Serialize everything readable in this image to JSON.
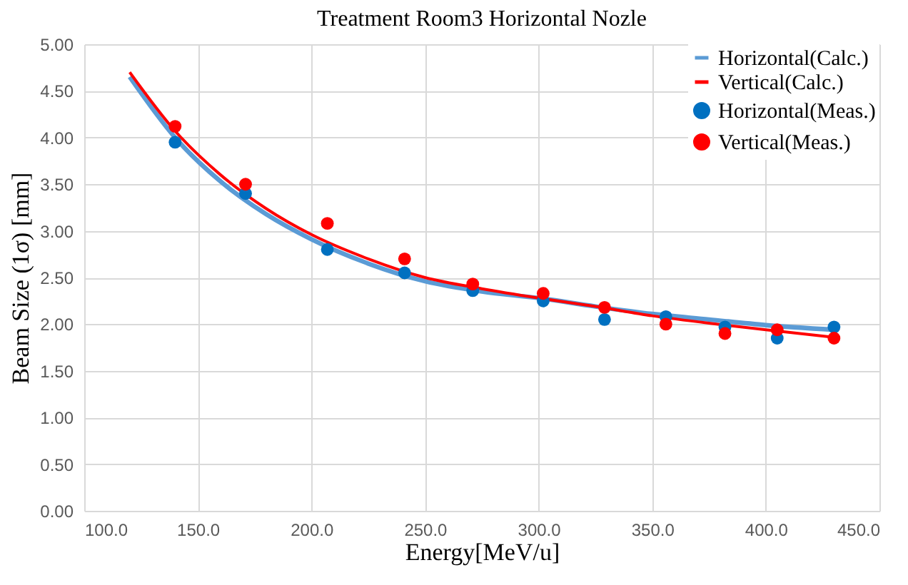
{
  "chart_data": {
    "type": "line",
    "title": "Treatment Room3  Horizontal Nozle",
    "xlabel": "Energy[MeV/u]",
    "ylabel": "Beam Size (1σ)  [mm]",
    "xlim": [
      100,
      450
    ],
    "xticks": [
      {
        "value": 100,
        "label": "100.0"
      },
      {
        "value": 150,
        "label": "150.0"
      },
      {
        "value": 200,
        "label": "200.0"
      },
      {
        "value": 250,
        "label": "250.0"
      },
      {
        "value": 300,
        "label": "300.0"
      },
      {
        "value": 350,
        "label": "350.0"
      },
      {
        "value": 400,
        "label": "400.0"
      },
      {
        "value": 450,
        "label": "450.0"
      }
    ],
    "ylim": [
      0,
      5
    ],
    "yticks": [
      {
        "value": 0,
        "label": "0.00"
      },
      {
        "value": 0.5,
        "label": "0.50"
      },
      {
        "value": 1,
        "label": "1.00"
      },
      {
        "value": 1.5,
        "label": "1.50"
      },
      {
        "value": 2,
        "label": "2.00"
      },
      {
        "value": 2.5,
        "label": "2.50"
      },
      {
        "value": 3,
        "label": "3.00"
      },
      {
        "value": 3.5,
        "label": "3.50"
      },
      {
        "value": 4,
        "label": "4.00"
      },
      {
        "value": 4.5,
        "label": "4.50"
      },
      {
        "value": 5,
        "label": "5.00"
      }
    ],
    "grid": true,
    "legend": "top right",
    "series": [
      {
        "name": "Horizontal(Calc.)",
        "marker": "none",
        "line_style": "solid",
        "color": "#5b9bd5",
        "x": [
          120,
          140,
          160,
          180,
          200,
          225,
          250,
          275,
          300,
          325,
          350,
          375,
          400,
          430
        ],
        "values": [
          4.65,
          4.0,
          3.53,
          3.18,
          2.91,
          2.65,
          2.46,
          2.35,
          2.28,
          2.19,
          2.11,
          2.05,
          1.99,
          1.94
        ]
      },
      {
        "name": "Vertical(Calc.)",
        "marker": "none",
        "line_style": "solid",
        "color": "#ff0000",
        "x": [
          120,
          140,
          160,
          180,
          200,
          225,
          250,
          275,
          300,
          325,
          350,
          375,
          400,
          430
        ],
        "values": [
          4.7,
          4.07,
          3.6,
          3.24,
          2.96,
          2.7,
          2.5,
          2.38,
          2.28,
          2.19,
          2.09,
          2.01,
          1.94,
          1.86
        ]
      },
      {
        "name": "Horizontal(Meas.)",
        "type": "scatter",
        "marker": "circle",
        "color": "#0070c0",
        "x": [
          140,
          171,
          207,
          241,
          271,
          302,
          329,
          356,
          382,
          405,
          430
        ],
        "values": [
          3.95,
          3.4,
          2.8,
          2.55,
          2.36,
          2.25,
          2.05,
          2.08,
          1.97,
          1.85,
          1.97
        ]
      },
      {
        "name": "Vertical(Meas.)",
        "type": "scatter",
        "marker": "circle",
        "color": "#ff0000",
        "x": [
          140,
          171,
          207,
          241,
          271,
          302,
          329,
          356,
          382,
          405,
          430
        ],
        "values": [
          4.12,
          3.5,
          3.08,
          2.7,
          2.43,
          2.33,
          2.18,
          2.0,
          1.9,
          1.94,
          1.85
        ]
      }
    ]
  }
}
